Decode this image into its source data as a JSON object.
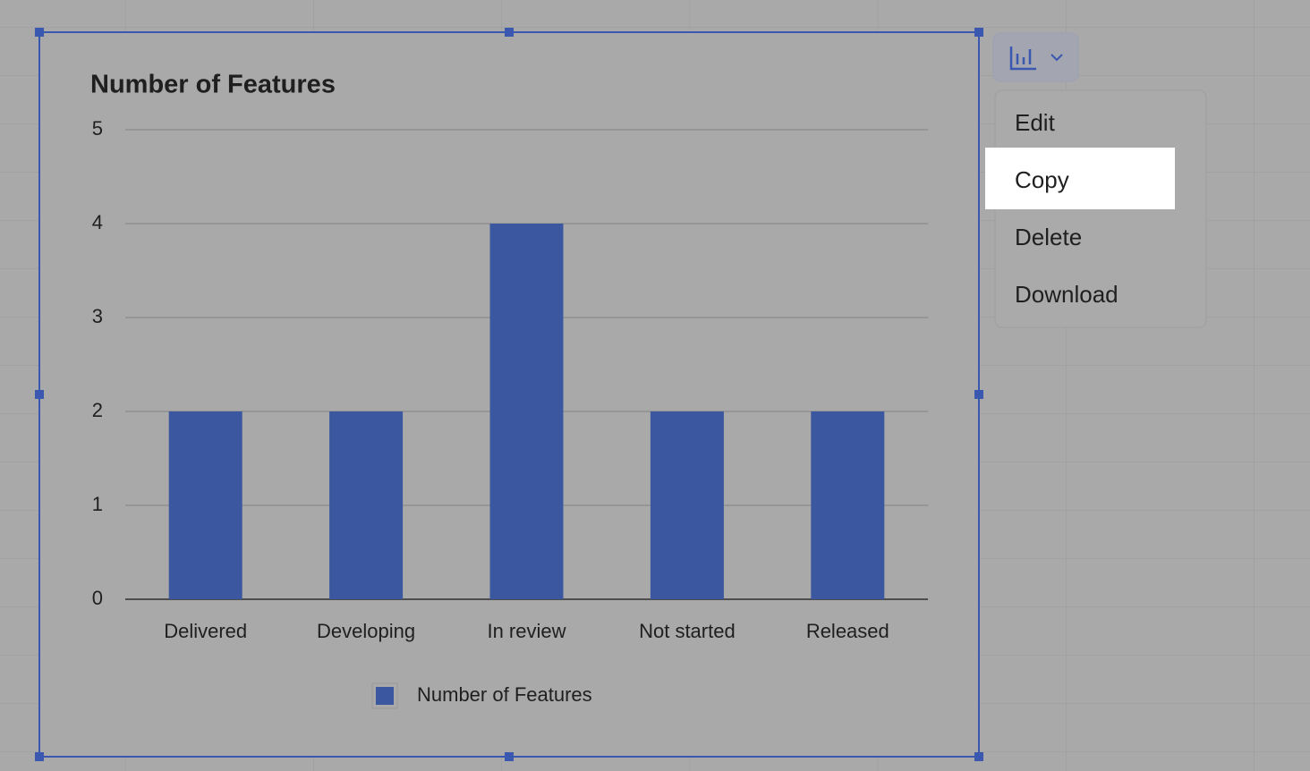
{
  "chart_data": {
    "type": "bar",
    "title": "Number of Features",
    "categories": [
      "Delivered",
      "Developing",
      "In review",
      "Not started",
      "Released"
    ],
    "series": [
      {
        "name": "Number of Features",
        "color": "#3b57a0",
        "values": [
          2,
          2,
          4,
          2,
          2
        ]
      }
    ],
    "ylim": [
      0,
      5
    ],
    "yticks": [
      0,
      1,
      2,
      3,
      4,
      5
    ],
    "grid": true,
    "legend": "bottom"
  },
  "menu": {
    "items": [
      "Edit",
      "Copy",
      "Delete",
      "Download"
    ]
  }
}
